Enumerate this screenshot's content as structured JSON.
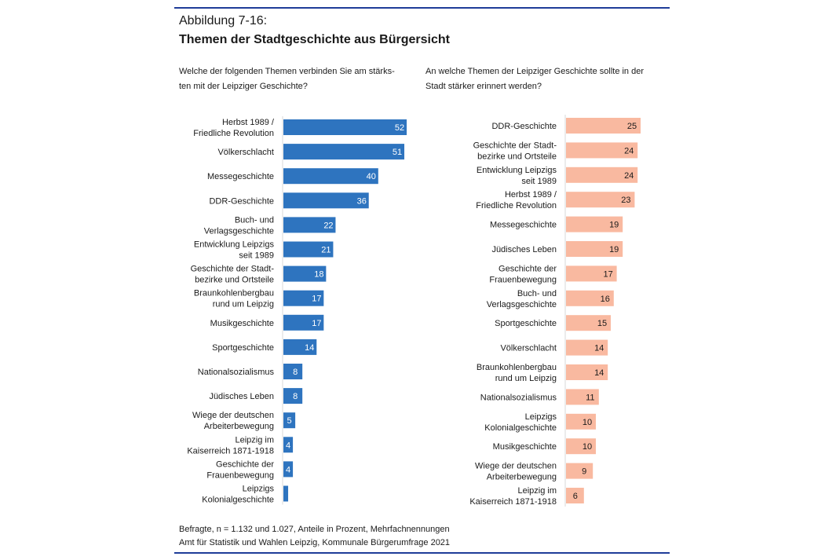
{
  "figure_label": "Abbildung 7-16:",
  "title": "Themen der Stadtgeschichte aus Bürgersicht",
  "footer": [
    "Befragte, n = 1.132 und 1.027, Anteile in Prozent, Mehrfachnennungen",
    "Amt für Statistik und Wahlen Leipzig, Kommunale Bürgerumfrage 2021"
  ],
  "chart_data": [
    {
      "type": "bar",
      "orientation": "horizontal",
      "title": "Welche der folgenden Themen verbinden Sie am stärksten mit der Leipziger Geschichte?",
      "title_lines": [
        "Welche der folgenden Themen verbinden Sie am stärks-",
        "ten mit der Leipziger Geschichte?"
      ],
      "color": "#2e74bf",
      "unit": "Prozent",
      "categories": [
        [
          "Herbst 1989 /",
          "Friedliche Revolution"
        ],
        [
          "Völkerschlacht"
        ],
        [
          "Messegeschichte"
        ],
        [
          "DDR-Geschichte"
        ],
        [
          "Buch- und",
          "Verlagsgeschichte"
        ],
        [
          "Entwicklung Leipzigs",
          "seit 1989"
        ],
        [
          "Geschichte der Stadt-",
          "bezirke und Ortsteile"
        ],
        [
          "Braunkohlenbergbau",
          "rund um Leipzig"
        ],
        [
          "Musikgeschichte"
        ],
        [
          "Sportgeschichte"
        ],
        [
          "Nationalsozialismus"
        ],
        [
          "Jüdisches Leben"
        ],
        [
          "Wiege der deutschen",
          "Arbeiterbewegung"
        ],
        [
          "Leipzig im",
          "Kaiserreich 1871-1918"
        ],
        [
          "Geschichte der",
          "Frauenbewegung"
        ],
        [
          "Leipzigs",
          "Kolonialgeschichte"
        ]
      ],
      "values": [
        52,
        51,
        40,
        36,
        22,
        21,
        18,
        17,
        17,
        14,
        8,
        8,
        5,
        4,
        4,
        2
      ],
      "labels": [
        "52",
        "51",
        "40",
        "36",
        "22",
        "21",
        "18",
        "17",
        "17",
        "14",
        "8",
        "8",
        "5",
        "4",
        "4",
        ""
      ]
    },
    {
      "type": "bar",
      "orientation": "horizontal",
      "title": "An welche Themen der Leipziger Geschichte sollte in der Stadt stärker erinnert werden?",
      "title_lines": [
        "An welche Themen der Leipziger Geschichte sollte in der",
        "Stadt stärker erinnert werden?"
      ],
      "color": "#f9b9a0",
      "unit": "Prozent",
      "categories": [
        [
          "DDR-Geschichte"
        ],
        [
          "Geschichte der Stadt-",
          "bezirke und Ortsteile"
        ],
        [
          "Entwicklung Leipzigs",
          "seit 1989"
        ],
        [
          "Herbst 1989 /",
          "Friedliche Revolution"
        ],
        [
          "Messegeschichte"
        ],
        [
          "Jüdisches Leben"
        ],
        [
          "Geschichte der",
          "Frauenbewegung"
        ],
        [
          "Buch- und",
          "Verlagsgeschichte"
        ],
        [
          "Sportgeschichte"
        ],
        [
          "Völkerschlacht"
        ],
        [
          "Braunkohlenbergbau",
          "rund um Leipzig"
        ],
        [
          "Nationalsozialismus"
        ],
        [
          "Leipzigs",
          "Kolonialgeschichte"
        ],
        [
          "Musikgeschichte"
        ],
        [
          "Wiege der deutschen",
          "Arbeiterbewegung"
        ],
        [
          "Leipzig im",
          "Kaiserreich 1871-1918"
        ]
      ],
      "values": [
        25,
        24,
        24,
        23,
        19,
        19,
        17,
        16,
        15,
        14,
        14,
        11,
        10,
        10,
        9,
        6
      ],
      "labels": [
        "25",
        "24",
        "24",
        "23",
        "19",
        "19",
        "17",
        "16",
        "15",
        "14",
        "14",
        "11",
        "10",
        "10",
        "9",
        "6"
      ]
    }
  ]
}
